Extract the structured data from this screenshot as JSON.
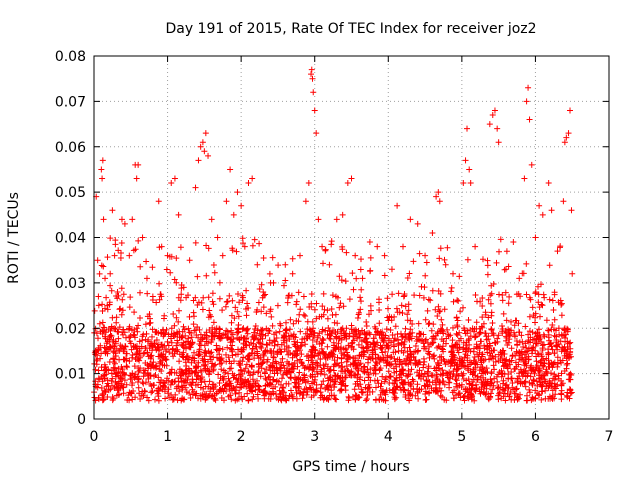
{
  "chart_data": {
    "type": "scatter",
    "title": "Day 191 of 2015, Rate Of TEC Index for receiver joz2",
    "xlabel": "GPS time / hours",
    "ylabel": "ROTI / TECUs",
    "xlim": [
      0,
      7
    ],
    "ylim": [
      0,
      0.08
    ],
    "x_ticks": [
      "0",
      "1",
      "2",
      "3",
      "4",
      "5",
      "6",
      "7"
    ],
    "y_ticks": [
      "0",
      "0.01",
      "0.02",
      "0.03",
      "0.04",
      "0.05",
      "0.06",
      "0.07",
      "0.08"
    ],
    "grid": true,
    "marker": "+",
    "marker_color": "#ff0000",
    "series": [
      {
        "name": "ROTI",
        "points": [
          [
            0.02,
            0.015
          ],
          [
            0.03,
            0.049
          ],
          [
            0.05,
            0.035
          ],
          [
            0.06,
            0.027
          ],
          [
            0.08,
            0.021
          ],
          [
            0.1,
            0.055
          ],
          [
            0.11,
            0.053
          ],
          [
            0.12,
            0.057
          ],
          [
            0.13,
            0.044
          ],
          [
            0.15,
            0.031
          ],
          [
            0.18,
            0.025
          ],
          [
            0.22,
            0.032
          ],
          [
            0.25,
            0.046
          ],
          [
            0.28,
            0.036
          ],
          [
            0.32,
            0.028
          ],
          [
            0.38,
            0.044
          ],
          [
            0.42,
            0.043
          ],
          [
            0.48,
            0.036
          ],
          [
            0.52,
            0.044
          ],
          [
            0.56,
            0.056
          ],
          [
            0.58,
            0.053
          ],
          [
            0.6,
            0.056
          ],
          [
            0.66,
            0.04
          ],
          [
            0.72,
            0.031
          ],
          [
            0.8,
            0.027
          ],
          [
            0.88,
            0.048
          ],
          [
            0.92,
            0.038
          ],
          [
            1.0,
            0.036
          ],
          [
            1.05,
            0.052
          ],
          [
            1.1,
            0.053
          ],
          [
            1.15,
            0.045
          ],
          [
            1.22,
            0.029
          ],
          [
            1.3,
            0.035
          ],
          [
            1.38,
            0.051
          ],
          [
            1.42,
            0.057
          ],
          [
            1.45,
            0.06
          ],
          [
            1.48,
            0.061
          ],
          [
            1.5,
            0.059
          ],
          [
            1.52,
            0.063
          ],
          [
            1.55,
            0.058
          ],
          [
            1.6,
            0.044
          ],
          [
            1.68,
            0.04
          ],
          [
            1.75,
            0.036
          ],
          [
            1.8,
            0.048
          ],
          [
            1.85,
            0.055
          ],
          [
            1.9,
            0.045
          ],
          [
            1.95,
            0.05
          ],
          [
            2.0,
            0.047
          ],
          [
            2.05,
            0.038
          ],
          [
            2.1,
            0.052
          ],
          [
            2.15,
            0.053
          ],
          [
            2.22,
            0.034
          ],
          [
            2.3,
            0.028
          ],
          [
            2.4,
            0.03
          ],
          [
            2.5,
            0.025
          ],
          [
            2.6,
            0.034
          ],
          [
            2.7,
            0.032
          ],
          [
            2.8,
            0.036
          ],
          [
            2.88,
            0.048
          ],
          [
            2.92,
            0.052
          ],
          [
            2.95,
            0.076
          ],
          [
            2.96,
            0.077
          ],
          [
            2.97,
            0.075
          ],
          [
            2.98,
            0.072
          ],
          [
            3.0,
            0.068
          ],
          [
            3.02,
            0.063
          ],
          [
            3.05,
            0.044
          ],
          [
            3.1,
            0.038
          ],
          [
            3.2,
            0.034
          ],
          [
            3.3,
            0.044
          ],
          [
            3.38,
            0.045
          ],
          [
            3.45,
            0.052
          ],
          [
            3.5,
            0.053
          ],
          [
            3.55,
            0.036
          ],
          [
            3.65,
            0.031
          ],
          [
            3.75,
            0.039
          ],
          [
            3.85,
            0.038
          ],
          [
            3.95,
            0.036
          ],
          [
            4.05,
            0.033
          ],
          [
            4.12,
            0.047
          ],
          [
            4.2,
            0.038
          ],
          [
            4.3,
            0.044
          ],
          [
            4.4,
            0.043
          ],
          [
            4.5,
            0.036
          ],
          [
            4.6,
            0.041
          ],
          [
            4.65,
            0.049
          ],
          [
            4.68,
            0.05
          ],
          [
            4.7,
            0.048
          ],
          [
            4.78,
            0.034
          ],
          [
            4.88,
            0.032
          ],
          [
            4.95,
            0.026
          ],
          [
            5.02,
            0.052
          ],
          [
            5.05,
            0.057
          ],
          [
            5.07,
            0.064
          ],
          [
            5.1,
            0.055
          ],
          [
            5.12,
            0.052
          ],
          [
            5.18,
            0.038
          ],
          [
            5.3,
            0.021
          ],
          [
            5.38,
            0.065
          ],
          [
            5.42,
            0.067
          ],
          [
            5.45,
            0.068
          ],
          [
            5.48,
            0.064
          ],
          [
            5.5,
            0.061
          ],
          [
            5.6,
            0.033
          ],
          [
            5.7,
            0.039
          ],
          [
            5.78,
            0.031
          ],
          [
            5.85,
            0.053
          ],
          [
            5.88,
            0.07
          ],
          [
            5.9,
            0.073
          ],
          [
            5.92,
            0.066
          ],
          [
            5.95,
            0.056
          ],
          [
            6.0,
            0.04
          ],
          [
            6.05,
            0.047
          ],
          [
            6.1,
            0.045
          ],
          [
            6.18,
            0.052
          ],
          [
            6.22,
            0.046
          ],
          [
            6.3,
            0.037
          ],
          [
            6.38,
            0.048
          ],
          [
            6.4,
            0.061
          ],
          [
            6.42,
            0.062
          ],
          [
            6.45,
            0.063
          ],
          [
            6.47,
            0.068
          ],
          [
            6.49,
            0.046
          ],
          [
            6.5,
            0.032
          ]
        ]
      }
    ]
  }
}
